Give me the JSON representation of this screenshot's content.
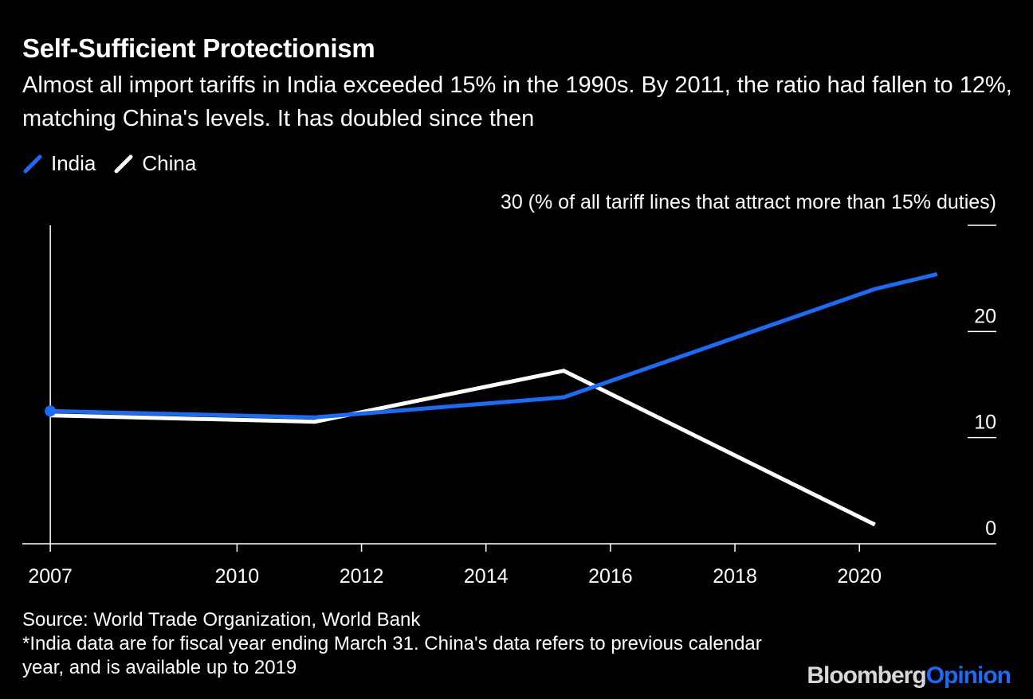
{
  "chart_data": {
    "type": "line",
    "title": "Self-Sufficient Protectionism",
    "subtitle": "Almost all import tariffs in India exceeded 15% in the 1990s. By 2011, the ratio had fallen to 12%, matching China's levels. It has doubled since then",
    "ylabel_top": "30 (% of all tariff lines that attract more than 15% duties)",
    "yticks": [
      "",
      "20",
      "10",
      "0"
    ],
    "ytick_values": [
      30,
      20,
      10,
      0
    ],
    "ylim": [
      0,
      30
    ],
    "xticks": [
      "2007",
      "2010",
      "2012",
      "2014",
      "2016",
      "2018",
      "2020"
    ],
    "xtick_values": [
      2007.0,
      2010.0,
      2012.0,
      2014.0,
      2016.0,
      2018.0,
      2020.0
    ],
    "xlim": [
      2006.55,
      2022.2
    ],
    "grid": false,
    "legend_position": "top-left",
    "series": [
      {
        "name": "India",
        "color": "#1a6cf7",
        "x": [
          2007.0,
          2011.25,
          2015.25,
          2020.25,
          2021.25
        ],
        "y": [
          12.5,
          11.9,
          13.8,
          24.0,
          25.4
        ]
      },
      {
        "name": "China",
        "color": "#ffffff",
        "x": [
          2007.0,
          2011.25,
          2015.25,
          2020.25
        ],
        "y": [
          12.1,
          11.5,
          16.3,
          1.8
        ]
      }
    ],
    "source": "Source: World Trade Organization, World Bank",
    "note": "*India data are for fiscal year ending March 31. China's data refers to previous calendar year, and is available up to 2019"
  },
  "brand": {
    "name": "Bloomberg",
    "suffix": "Opinion"
  }
}
